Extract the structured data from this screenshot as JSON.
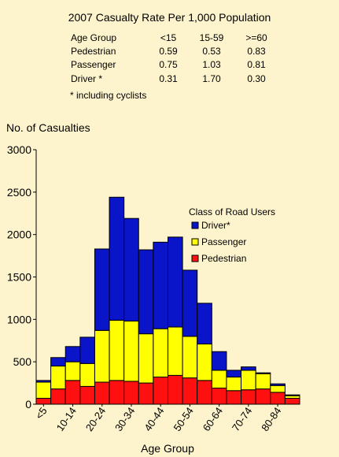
{
  "title": "2007 Casualty Rate Per 1,000 Population",
  "rate_table": {
    "header": [
      "Age Group",
      "<15",
      "15-59",
      ">=60"
    ],
    "rows": [
      [
        "Pedestrian",
        "0.59",
        "0.53",
        "0.83"
      ],
      [
        "Passenger",
        "0.75",
        "1.03",
        "0.81"
      ],
      [
        "Driver *",
        "0.31",
        "1.70",
        "0.30"
      ]
    ],
    "footnote": "* including cyclists"
  },
  "chart_data": {
    "type": "bar",
    "stacked": true,
    "ylabel": "No. of Casualties",
    "xlabel": "Age Group",
    "ylim": [
      0,
      3000
    ],
    "yticks": [
      0,
      500,
      1000,
      1500,
      2000,
      2500,
      3000
    ],
    "tick_labels": [
      "<5",
      "10-14",
      "20-24",
      "30-34",
      "40-44",
      "50-54",
      "60-64",
      "70-74",
      "80-84"
    ],
    "categories": [
      "<5",
      "5-9",
      "10-14",
      "15-19",
      "20-24",
      "25-29",
      "30-34",
      "35-39",
      "40-44",
      "45-49",
      "50-54",
      "55-59",
      "60-64",
      "65-69",
      "70-74",
      "75-79",
      "80-84",
      "85+"
    ],
    "legend_title": "Class of Road Users",
    "legend_position": "right",
    "colors": {
      "Driver*": "#0a14c8",
      "Passenger": "#ffff00",
      "Pedestrian": "#ff1010"
    },
    "series": [
      {
        "name": "Pedestrian",
        "values": [
          70,
          180,
          280,
          210,
          260,
          280,
          270,
          250,
          320,
          340,
          310,
          280,
          190,
          160,
          170,
          180,
          140,
          70
        ]
      },
      {
        "name": "Passenger",
        "values": [
          190,
          270,
          220,
          270,
          610,
          710,
          710,
          580,
          570,
          570,
          490,
          430,
          210,
          160,
          230,
          180,
          80,
          30
        ]
      },
      {
        "name": "Driver*",
        "values": [
          20,
          100,
          180,
          310,
          960,
          1450,
          1210,
          990,
          1020,
          1060,
          780,
          480,
          220,
          80,
          40,
          10,
          20,
          10
        ]
      }
    ]
  }
}
